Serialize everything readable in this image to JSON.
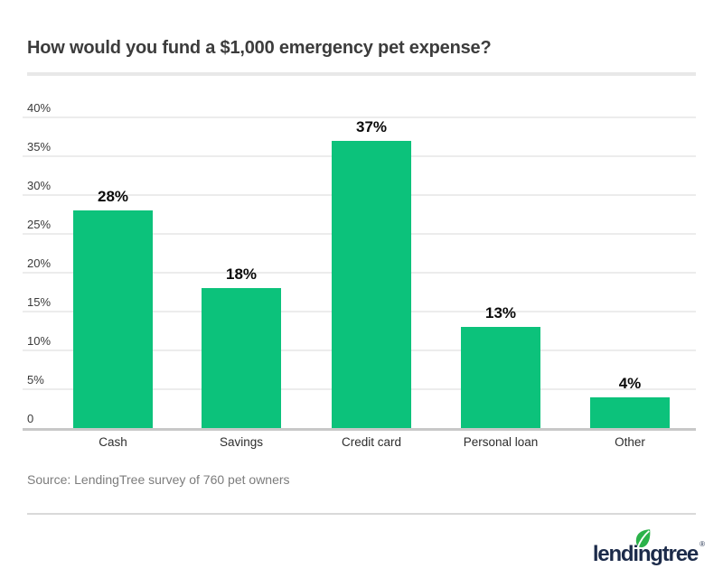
{
  "page": {
    "title": "How would you fund a $1,000 emergency pet expense?",
    "source_note": "Source: LendingTree survey of 760 pet owners",
    "logo": {
      "brand": "lendingtree",
      "registered_mark": "®",
      "leaf_icon_color": "#2bb24a",
      "wordmark_color": "#1c2b4a"
    }
  },
  "chart_data": {
    "type": "bar",
    "title": "How would you fund a $1,000 emergency pet expense?",
    "categories": [
      "Cash",
      "Savings",
      "Credit card",
      "Personal loan",
      "Other"
    ],
    "values": [
      28,
      18,
      37,
      13,
      4
    ],
    "value_labels": [
      "28%",
      "18%",
      "37%",
      "13%",
      "4%"
    ],
    "yticks": [
      "40%",
      "35%",
      "30%",
      "25%",
      "20%",
      "15%",
      "10%",
      "5%",
      "0"
    ],
    "ylim": [
      0,
      40
    ],
    "ytick_step": 5,
    "xlabel": "",
    "ylabel": "",
    "grid": true,
    "legend": false,
    "bar_color": "#0cc27b",
    "gridline_color": "#ececec",
    "axis_line_color": "#c8c8c8"
  }
}
